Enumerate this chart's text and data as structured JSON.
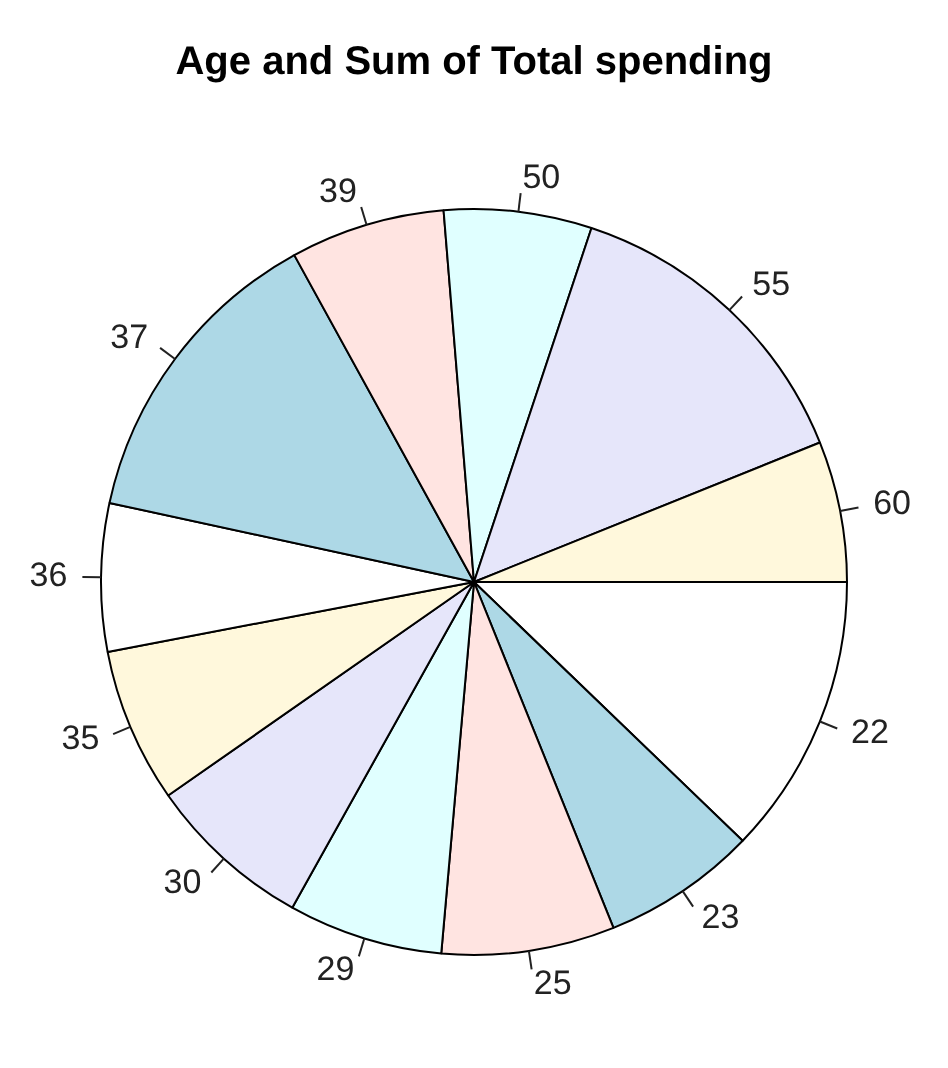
{
  "chart_data": {
    "type": "pie",
    "title": "Age and Sum of Total spending",
    "categories": [
      "22",
      "23",
      "25",
      "29",
      "30",
      "35",
      "36",
      "37",
      "39",
      "50",
      "55",
      "60"
    ],
    "values": [
      12.2,
      6.7,
      7.5,
      6.7,
      7.2,
      6.7,
      6.4,
      13.6,
      6.7,
      6.4,
      13.8,
      6.1
    ],
    "colors": [
      "#ffffff",
      "#add8e6",
      "#ffe4e1",
      "#e0ffff",
      "#e6e6fa",
      "#fff8dc",
      "#ffffff",
      "#add8e6",
      "#ffe4e1",
      "#e0ffff",
      "#e6e6fa",
      "#fff8dc"
    ],
    "legend": false
  }
}
